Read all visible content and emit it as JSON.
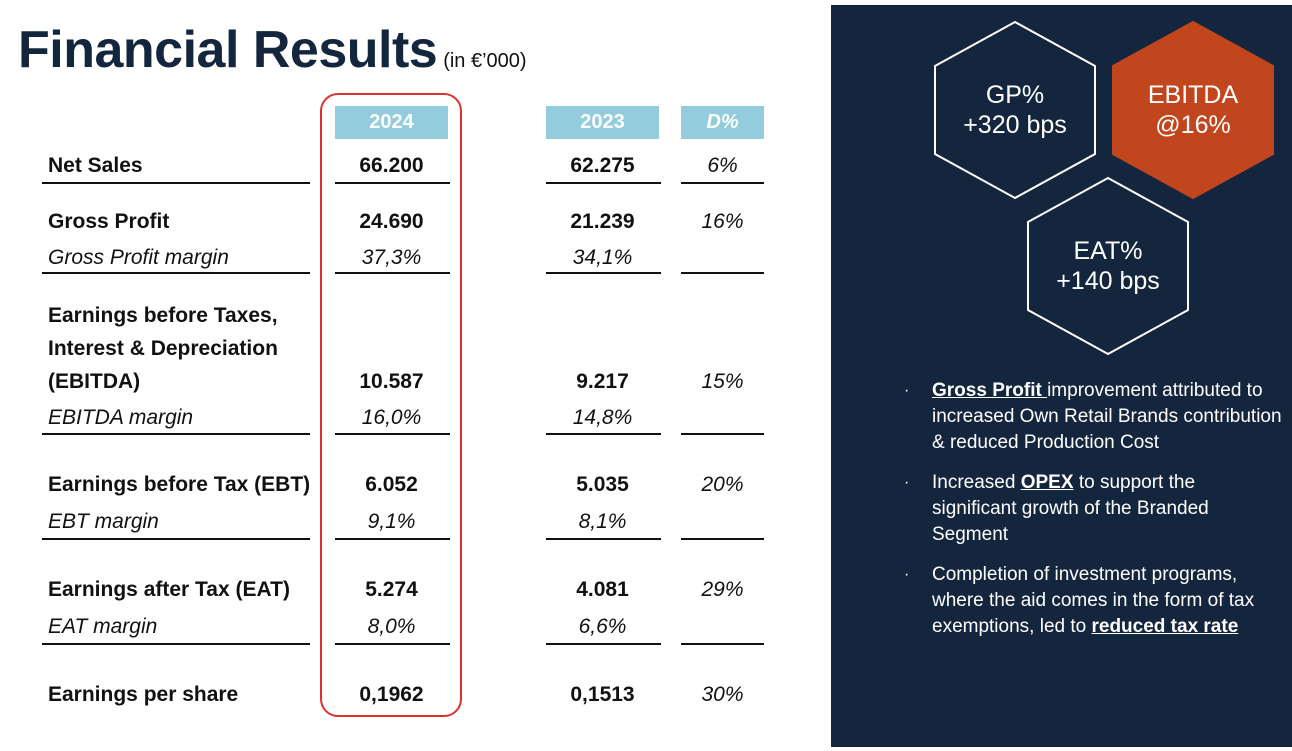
{
  "title": "Financial Results",
  "title_unit": "(in €’000)",
  "columns": {
    "y2024": "2024",
    "y2023": "2023",
    "delta": "D%"
  },
  "rows": {
    "net_sales": {
      "label": "Net Sales",
      "v2024": "66.200",
      "v2023": "62.275",
      "delta": "6%"
    },
    "gross_profit": {
      "label": "Gross Profit",
      "v2024": "24.690",
      "v2023": "21.239",
      "delta": "16%"
    },
    "gross_profit_margin": {
      "label": "Gross Profit margin",
      "v2024": "37,3%",
      "v2023": "34,1%"
    },
    "ebitda": {
      "label": "Earnings before Taxes, Interest & Depreciation (EBITDA)",
      "v2024": "10.587",
      "v2023": "9.217",
      "delta": "15%"
    },
    "ebitda_margin": {
      "label": "EBITDA margin",
      "v2024": "16,0%",
      "v2023": "14,8%"
    },
    "ebt": {
      "label": "Earnings before Tax (EBT)",
      "v2024": "6.052",
      "v2023": "5.035",
      "delta": "20%"
    },
    "ebt_margin": {
      "label": "EBT margin",
      "v2024": "9,1%",
      "v2023": "8,1%"
    },
    "eat": {
      "label": "Earnings after Tax (EAT)",
      "v2024": "5.274",
      "v2023": "4.081",
      "delta": "29%"
    },
    "eat_margin": {
      "label": "EAT margin",
      "v2024": "8,0%",
      "v2023": "6,6%"
    },
    "eps": {
      "label": "Earnings per share",
      "v2024": "0,1962",
      "v2023": "0,1513",
      "delta": "30%"
    }
  },
  "highlights": {
    "gp": {
      "line1": "GP%",
      "line2": "+320 bps"
    },
    "ebitda": {
      "line1": "EBITDA",
      "line2": "@16%"
    },
    "eat": {
      "line1": "EAT%",
      "line2": "+140 bps"
    }
  },
  "bullets": {
    "b1": {
      "emph": "Gross Profit ",
      "text": "improvement attributed to increased Own Retail Brands contribution & reduced Production Cost"
    },
    "b2": {
      "pre": "Increased ",
      "emph": "OPEX",
      "text": " to support the significant growth of the Branded Segment"
    },
    "b3": {
      "text": "Completion of investment programs, where the aid comes in the form of tax exemptions, led to ",
      "emph": "reduced tax rate"
    }
  },
  "colors": {
    "navy": "#14253e",
    "header_blue": "#93cddd",
    "accent_orange": "#c1461d",
    "highlight_red": "#e03131"
  }
}
